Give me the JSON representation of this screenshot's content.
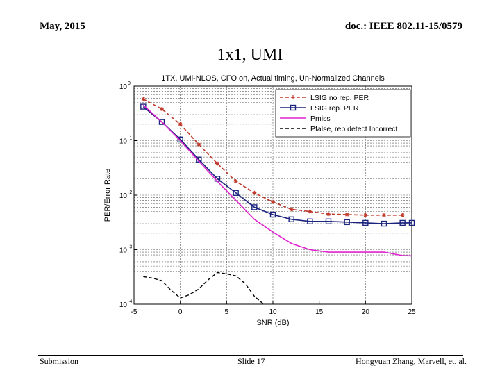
{
  "header": {
    "date": "May, 2015",
    "doc": "doc.: IEEE 802.11-15/0579"
  },
  "slide": {
    "title": "1x1, UMI"
  },
  "footer": {
    "left": "Submission",
    "center": "Slide 17",
    "right": "Hongyuan Zhang, Marvell, et. al."
  },
  "colors": {
    "red": "#c0392b",
    "blue": "#1a237e",
    "magenta": "#e020d0",
    "black": "#000000"
  },
  "chart_data": {
    "type": "line",
    "title": "1TX, UMi-NLOS, CFO on, Actual timing, Un-Normalized Channels",
    "xlabel": "SNR (dB)",
    "ylabel": "PER/Error Rate",
    "xlim": [
      -5,
      25
    ],
    "ylim_log10": [
      -4,
      0
    ],
    "yscale": "log",
    "xticks": [
      -5,
      0,
      5,
      10,
      15,
      20,
      25
    ],
    "yticks": [
      {
        "exp": -4,
        "base": "10",
        "sup": "-4"
      },
      {
        "exp": -3,
        "base": "10",
        "sup": "-3"
      },
      {
        "exp": -2,
        "base": "10",
        "sup": "-2"
      },
      {
        "exp": -1,
        "base": "10",
        "sup": "-1"
      },
      {
        "exp": 0,
        "base": "10",
        "sup": "0"
      }
    ],
    "legend_position": "top-right",
    "series": [
      {
        "name": "LSIG no rep. PER",
        "style": "red-dash-star",
        "x": [
          -4,
          -2,
          0,
          2,
          4,
          6,
          8,
          10,
          12,
          14,
          16,
          18,
          20,
          22,
          24
        ],
        "y": [
          0.58,
          0.38,
          0.2,
          0.085,
          0.038,
          0.018,
          0.011,
          0.0075,
          0.0055,
          0.005,
          0.0045,
          0.0044,
          0.0043,
          0.0043,
          0.0043
        ]
      },
      {
        "name": "LSIG rep. PER",
        "style": "blue-solid-square",
        "x": [
          -4,
          -2,
          0,
          2,
          4,
          6,
          8,
          10,
          12,
          14,
          16,
          18,
          20,
          22,
          24,
          25
        ],
        "y": [
          0.42,
          0.22,
          0.105,
          0.045,
          0.02,
          0.011,
          0.006,
          0.0044,
          0.0036,
          0.0033,
          0.0033,
          0.0032,
          0.0031,
          0.003,
          0.0031,
          0.0031
        ]
      },
      {
        "name": "Pmiss",
        "style": "magenta-solid",
        "x": [
          -4,
          -2,
          0,
          2,
          4,
          6,
          8,
          10,
          12,
          14,
          16,
          18,
          20,
          22,
          24,
          25
        ],
        "y": [
          0.45,
          0.22,
          0.1,
          0.042,
          0.018,
          0.008,
          0.0036,
          0.0021,
          0.0013,
          0.001,
          0.0009,
          0.0009,
          0.0009,
          0.0009,
          0.00078,
          0.00077
        ]
      },
      {
        "name": "Pfalse, rep detect Incorrect",
        "style": "black-dash",
        "x": [
          -4,
          -3,
          -2,
          -1,
          0,
          1,
          2,
          3,
          4,
          5,
          6,
          7,
          8,
          9
        ],
        "y": [
          0.00032,
          0.0003,
          0.00027,
          0.00018,
          0.00013,
          0.00015,
          0.00019,
          0.00028,
          0.00038,
          0.00036,
          0.00033,
          0.00024,
          0.00014,
          0.0001
        ]
      }
    ]
  }
}
